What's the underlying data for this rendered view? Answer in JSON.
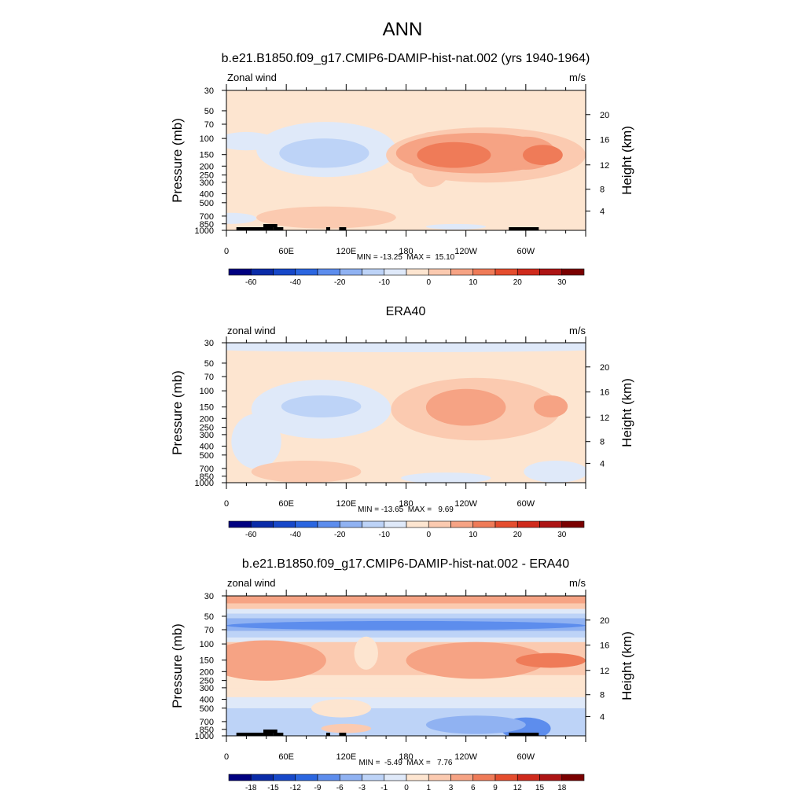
{
  "figure": {
    "season": "ANN"
  },
  "colors": {
    "land_mask": "#000000",
    "frame": "#000000"
  },
  "chart_data": [
    {
      "type": "heatmap",
      "id": "model",
      "title": "b.e21.B1850.f09_g17.CMIP6-DAMIP-hist-nat.002 (yrs 1940-1964)",
      "left_label": "Zonal wind",
      "right_label": "m/s",
      "ylabel": "Pressure (mb)",
      "ylabel_right": "Height (km)",
      "stats": "MIN = -13.25  MAX =  15.10",
      "x_ticks": [
        {
          "lon": 0,
          "label": "0"
        },
        {
          "lon": 60,
          "label": "60E"
        },
        {
          "lon": 120,
          "label": "120E"
        },
        {
          "lon": 180,
          "label": "180"
        },
        {
          "lon": 240,
          "label": "120W"
        },
        {
          "lon": 300,
          "label": "60W"
        }
      ],
      "p_ticks": [
        "30",
        "50",
        "70",
        "100",
        "150",
        "200",
        "250",
        "300",
        "400",
        "500",
        "700",
        "850",
        "1000"
      ],
      "h_ticks": [
        "20",
        "16",
        "12",
        "8",
        "4"
      ],
      "colorbar_labels": [
        "-60",
        "-40",
        "-20",
        "-10",
        "0",
        "10",
        "20",
        "30"
      ],
      "colorbar_colors": [
        "#000080",
        "#0a2ba8",
        "#1748c9",
        "#2b66e0",
        "#5d8ded",
        "#90b2f2",
        "#bdd3f7",
        "#dfe9f9",
        "#fde5d0",
        "#fbcab0",
        "#f6a384",
        "#ef7b58",
        "#e54d2e",
        "#cf2a1c",
        "#ad1414",
        "#7a0000"
      ],
      "field": {
        "background": "#fde5d0",
        "blobs": [
          {
            "lon": 20,
            "lev": 2.03,
            "rlon": 30,
            "rlev": 0.1,
            "color": "#dfe9f9"
          },
          {
            "lon": 305,
            "lev": 2.03,
            "rlon": 25,
            "rlev": 0.08,
            "color": "#dfe9f9"
          },
          {
            "lon": 100,
            "lev": 2.12,
            "rlon": 70,
            "rlev": 0.3,
            "color": "#dfe9f9"
          },
          {
            "lon": 98,
            "lev": 2.16,
            "rlon": 45,
            "rlev": 0.16,
            "color": "#bdd3f7"
          },
          {
            "lon": 205,
            "lev": 2.23,
            "rlon": 22,
            "rlev": 0.3,
            "color": "#fbcab0"
          },
          {
            "lon": 260,
            "lev": 2.18,
            "rlon": 100,
            "rlev": 0.3,
            "color": "#fbcab0"
          },
          {
            "lon": 250,
            "lev": 2.16,
            "rlon": 80,
            "rlev": 0.22,
            "color": "#f6a384"
          },
          {
            "lon": 300,
            "lev": 2.16,
            "rlon": 30,
            "rlev": 0.18,
            "color": "#f6a384"
          },
          {
            "lon": 228,
            "lev": 2.18,
            "rlon": 37,
            "rlev": 0.14,
            "color": "#ef7b58"
          },
          {
            "lon": 317,
            "lev": 2.18,
            "rlon": 20,
            "rlev": 0.11,
            "color": "#ef7b58"
          },
          {
            "lon": 100,
            "lev": 2.86,
            "rlon": 70,
            "rlev": 0.12,
            "color": "#fbcab0"
          },
          {
            "lon": 230,
            "lev": 2.96,
            "rlon": 30,
            "rlev": 0.03,
            "color": "#dfe9f9"
          },
          {
            "lon": 5,
            "lev": 2.87,
            "rlon": 25,
            "rlev": 0.06,
            "color": "#dfe9f9"
          }
        ],
        "land": true
      }
    },
    {
      "type": "heatmap",
      "id": "obs",
      "title": "ERA40",
      "left_label": "zonal wind",
      "right_label": "m/s",
      "ylabel": "Pressure (mb)",
      "ylabel_right": "Height (km)",
      "stats": "MIN = -13.65  MAX =   9.69",
      "x_ticks": [
        {
          "lon": 0,
          "label": "0"
        },
        {
          "lon": 60,
          "label": "60E"
        },
        {
          "lon": 120,
          "label": "120E"
        },
        {
          "lon": 180,
          "label": "180"
        },
        {
          "lon": 240,
          "label": "120W"
        },
        {
          "lon": 300,
          "label": "60W"
        }
      ],
      "p_ticks": [
        "30",
        "50",
        "70",
        "100",
        "150",
        "200",
        "250",
        "300",
        "400",
        "500",
        "700",
        "850",
        "1000"
      ],
      "h_ticks": [
        "20",
        "16",
        "12",
        "8",
        "4"
      ],
      "colorbar_labels": [
        "-60",
        "-40",
        "-20",
        "-10",
        "0",
        "10",
        "20",
        "30"
      ],
      "colorbar_colors": [
        "#000080",
        "#0a2ba8",
        "#1748c9",
        "#2b66e0",
        "#5d8ded",
        "#90b2f2",
        "#bdd3f7",
        "#dfe9f9",
        "#fde5d0",
        "#fbcab0",
        "#f6a384",
        "#ef7b58",
        "#e54d2e",
        "#cf2a1c",
        "#ad1414",
        "#7a0000"
      ],
      "field": {
        "background": "#fde5d0",
        "blobs": [
          {
            "lon": 180,
            "lev": 1.52,
            "rlon": 240,
            "rlev": 0.06,
            "color": "#dfe9f9"
          },
          {
            "lon": 95,
            "lev": 2.2,
            "rlon": 70,
            "rlev": 0.32,
            "color": "#dfe9f9"
          },
          {
            "lon": 30,
            "lev": 2.55,
            "rlon": 25,
            "rlev": 0.3,
            "color": "#dfe9f9"
          },
          {
            "lon": 95,
            "lev": 2.17,
            "rlon": 40,
            "rlev": 0.12,
            "color": "#bdd3f7"
          },
          {
            "lon": 250,
            "lev": 2.2,
            "rlon": 85,
            "rlev": 0.34,
            "color": "#fbcab0"
          },
          {
            "lon": 240,
            "lev": 2.18,
            "rlon": 40,
            "rlev": 0.2,
            "color": "#f6a384"
          },
          {
            "lon": 325,
            "lev": 2.17,
            "rlon": 17,
            "rlev": 0.12,
            "color": "#f6a384"
          },
          {
            "lon": 80,
            "lev": 2.88,
            "rlon": 55,
            "rlev": 0.12,
            "color": "#fbcab0"
          },
          {
            "lon": 220,
            "lev": 2.95,
            "rlon": 45,
            "rlev": 0.06,
            "color": "#dfe9f9"
          },
          {
            "lon": 330,
            "lev": 2.88,
            "rlon": 32,
            "rlev": 0.12,
            "color": "#dfe9f9"
          }
        ],
        "land": false
      }
    },
    {
      "type": "heatmap",
      "id": "diff",
      "title": "b.e21.B1850.f09_g17.CMIP6-DAMIP-hist-nat.002 - ERA40",
      "left_label": "zonal wind",
      "right_label": "m/s",
      "ylabel": "Pressure (mb)",
      "ylabel_right": "Height (km)",
      "stats": "MIN =  -5.49  MAX =   7.76",
      "x_ticks": [
        {
          "lon": 0,
          "label": "0"
        },
        {
          "lon": 60,
          "label": "60E"
        },
        {
          "lon": 120,
          "label": "120E"
        },
        {
          "lon": 180,
          "label": "180"
        },
        {
          "lon": 240,
          "label": "120W"
        },
        {
          "lon": 300,
          "label": "60W"
        }
      ],
      "p_ticks": [
        "30",
        "50",
        "70",
        "100",
        "150",
        "200",
        "250",
        "300",
        "400",
        "500",
        "700",
        "850",
        "1000"
      ],
      "h_ticks": [
        "20",
        "16",
        "12",
        "8",
        "4"
      ],
      "colorbar_labels": [
        "-18",
        "-15",
        "-12",
        "-9",
        "-6",
        "-3",
        "-1",
        "0",
        "1",
        "3",
        "6",
        "9",
        "12",
        "15",
        "18"
      ],
      "colorbar_colors": [
        "#000080",
        "#0a2ba8",
        "#1748c9",
        "#2b66e0",
        "#5d8ded",
        "#90b2f2",
        "#bdd3f7",
        "#dfe9f9",
        "#fde5d0",
        "#fbcab0",
        "#f6a384",
        "#ef7b58",
        "#e54d2e",
        "#cf2a1c",
        "#ad1414",
        "#7a0000"
      ],
      "field": {
        "background": "#fde5d0",
        "bands": [
          {
            "lev0": 1.48,
            "lev1": 1.56,
            "color": "#f6a384"
          },
          {
            "lev0": 1.56,
            "lev1": 1.62,
            "color": "#fbcab0"
          },
          {
            "lev0": 1.62,
            "lev1": 1.67,
            "color": "#dfe9f9"
          },
          {
            "lev0": 1.67,
            "lev1": 1.72,
            "color": "#bdd3f7"
          },
          {
            "lev0": 1.72,
            "lev1": 1.86,
            "color": "#90b2f2"
          },
          {
            "lev0": 1.86,
            "lev1": 1.93,
            "color": "#bdd3f7"
          },
          {
            "lev0": 1.93,
            "lev1": 1.98,
            "color": "#dfe9f9"
          },
          {
            "lev0": 1.98,
            "lev1": 2.34,
            "color": "#fbcab0"
          },
          {
            "lev0": 2.34,
            "lev1": 2.48,
            "color": "#fde5d0"
          },
          {
            "lev0": 2.58,
            "lev1": 2.7,
            "color": "#dfe9f9"
          },
          {
            "lev0": 2.7,
            "lev1": 3.01,
            "color": "#bdd3f7"
          }
        ],
        "blobs": [
          {
            "lon": 180,
            "lev": 1.8,
            "rlon": 180,
            "rlev": 0.05,
            "color": "#5d8ded"
          },
          {
            "lon": 40,
            "lev": 2.18,
            "rlon": 60,
            "rlev": 0.22,
            "color": "#f6a384"
          },
          {
            "lon": 250,
            "lev": 2.18,
            "rlon": 70,
            "rlev": 0.2,
            "color": "#f6a384"
          },
          {
            "lon": 325,
            "lev": 2.18,
            "rlon": 35,
            "rlev": 0.08,
            "color": "#ef7b58"
          },
          {
            "lon": 140,
            "lev": 2.1,
            "rlon": 12,
            "rlev": 0.18,
            "color": "#fde5d0"
          },
          {
            "lon": 115,
            "lev": 2.7,
            "rlon": 30,
            "rlev": 0.1,
            "color": "#fde5d0"
          },
          {
            "lon": 300,
            "lev": 2.92,
            "rlon": 25,
            "rlev": 0.12,
            "color": "#5d8ded"
          },
          {
            "lon": 250,
            "lev": 2.88,
            "rlon": 50,
            "rlev": 0.1,
            "color": "#90b2f2"
          },
          {
            "lon": 120,
            "lev": 2.92,
            "rlon": 25,
            "rlev": 0.05,
            "color": "#fbcab0"
          }
        ],
        "land": true
      }
    }
  ]
}
